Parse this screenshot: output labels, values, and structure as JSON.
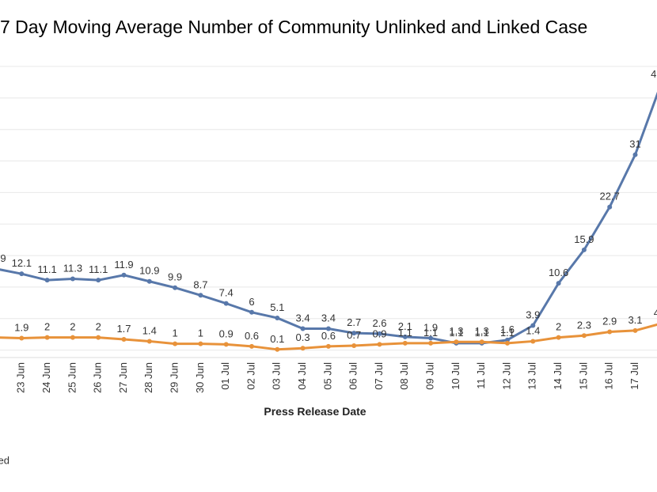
{
  "chart_data": {
    "type": "line",
    "title": "7 Day Moving Average Number of Community Unlinked and Linked Case",
    "x_label": "Press Release Date",
    "categories": [
      null,
      "23 Jun",
      "24 Jun",
      "25 Jun",
      "26 Jun",
      "27 Jun",
      "28 Jun",
      "29 Jun",
      "30 Jun",
      "01 Jul",
      "02 Jul",
      "03 Jul",
      "04 Jul",
      "05 Jul",
      "06 Jul",
      "07 Jul",
      "08 Jul",
      "09 Jul",
      "10 Jul",
      "11 Jul",
      "12 Jul",
      "13 Jul",
      "14 Jul",
      "15 Jul",
      "16 Jul",
      "17 Jul",
      null
    ],
    "series": [
      {
        "name": "Linked",
        "color": "#5878aa",
        "values": [
          12.9,
          12.1,
          11.1,
          11.3,
          11.1,
          11.9,
          10.9,
          9.9,
          8.7,
          7.4,
          6.0,
          5.1,
          3.4,
          3.4,
          2.7,
          2.6,
          2.1,
          1.9,
          1.1,
          1.1,
          1.6,
          3.9,
          10.6,
          15.9,
          22.7,
          31.0,
          42.1
        ]
      },
      {
        "name": "Unlinked",
        "color": "#e8923a",
        "values": [
          2.0,
          1.9,
          2.0,
          2.0,
          2.0,
          1.7,
          1.4,
          1.0,
          1.0,
          0.9,
          0.6,
          0.1,
          0.3,
          0.6,
          0.7,
          0.9,
          1.1,
          1.1,
          1.3,
          1.3,
          1.1,
          1.4,
          2.0,
          2.3,
          2.9,
          3.1,
          4.2
        ]
      }
    ],
    "ylim": [
      0,
      45
    ],
    "yticks": [
      0,
      5,
      10,
      15,
      20,
      25,
      30,
      35,
      40,
      45
    ],
    "grid": true
  }
}
